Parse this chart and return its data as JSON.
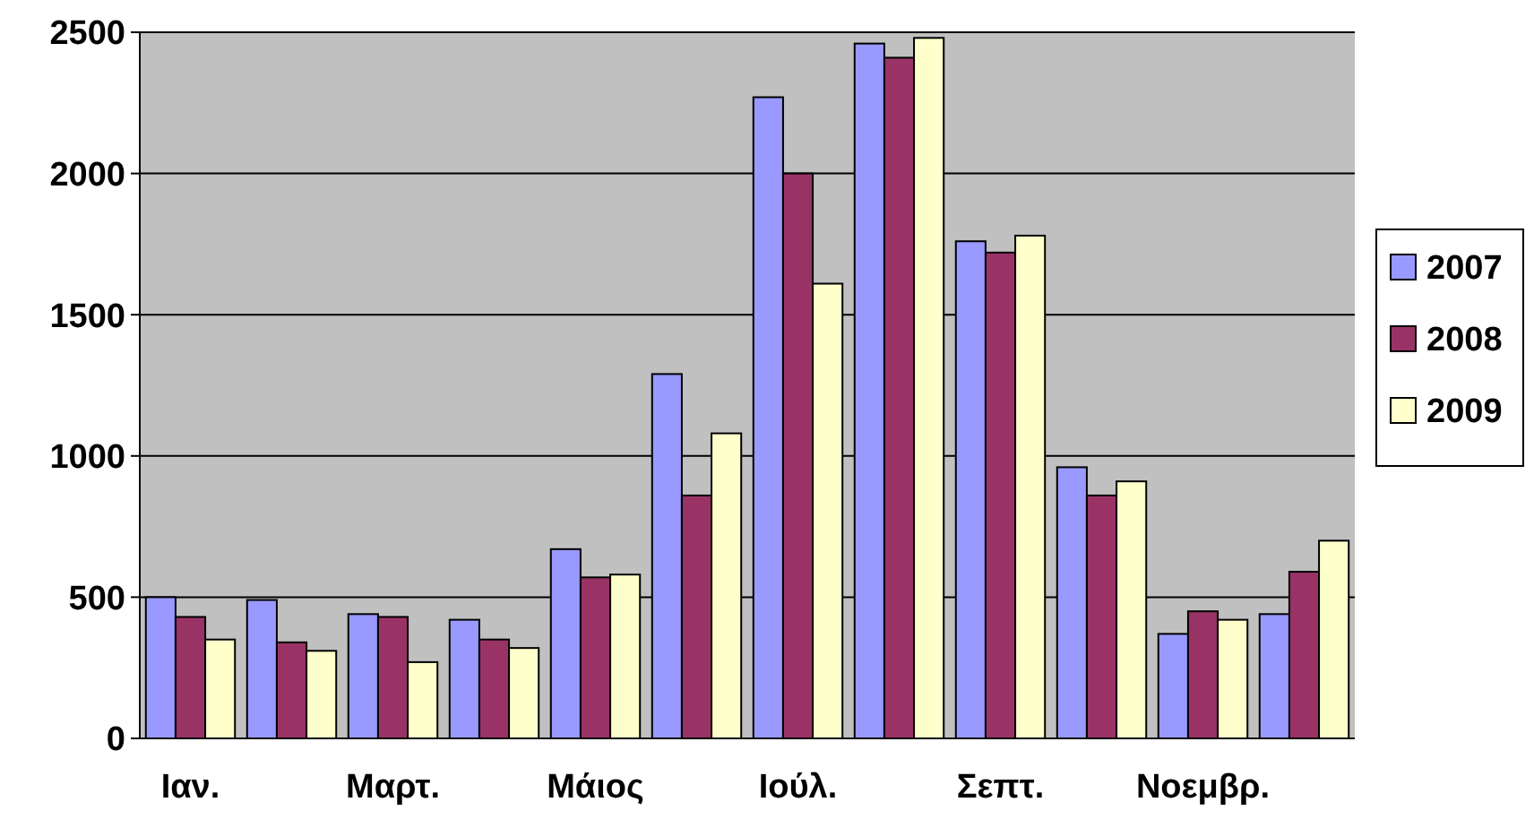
{
  "chart_data": {
    "type": "bar",
    "categories": [
      "Ιαν.",
      null,
      "Μαρτ.",
      null,
      "Μάιος",
      null,
      "Ιούλ.",
      null,
      "Σεπτ.",
      null,
      "Νοεμβρ.",
      null
    ],
    "series": [
      {
        "name": "2007",
        "color": "#9999ff",
        "values": [
          500,
          490,
          440,
          420,
          670,
          1290,
          2270,
          2460,
          1760,
          960,
          370,
          440
        ]
      },
      {
        "name": "2008",
        "color": "#993366",
        "values": [
          430,
          340,
          430,
          350,
          570,
          860,
          2000,
          2410,
          1720,
          860,
          450,
          590
        ]
      },
      {
        "name": "2009",
        "color": "#ffffcc",
        "values": [
          350,
          310,
          270,
          320,
          580,
          1080,
          1610,
          2480,
          1780,
          910,
          420,
          700
        ]
      }
    ],
    "ylim": [
      0,
      2500
    ],
    "yticks": [
      0,
      500,
      1000,
      1500,
      2000,
      2500
    ],
    "grid": "y",
    "legend": "right"
  }
}
